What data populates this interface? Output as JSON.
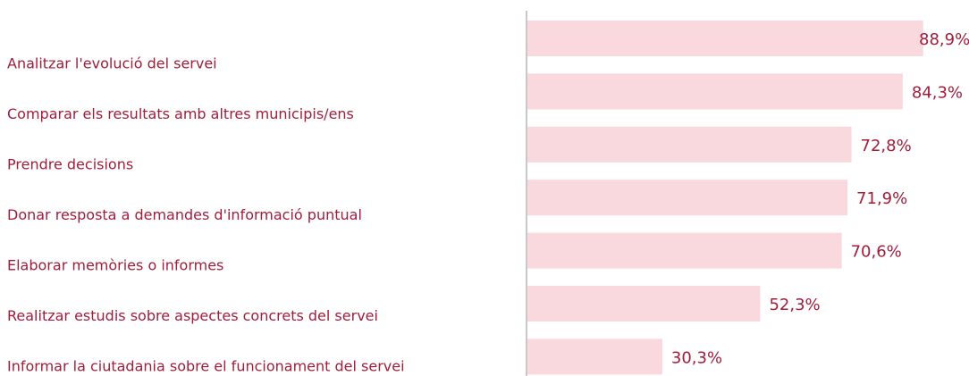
{
  "chart_data": {
    "type": "bar",
    "orientation": "horizontal",
    "categories": [
      "Analitzar l'evolució del servei",
      "Comparar els resultats amb altres municipis/ens",
      "Prendre decisions",
      "Donar resposta a demandes d'informació puntual",
      "Elaborar memòries o informes",
      "Realitzar estudis sobre aspectes concrets del servei",
      "Informar la ciutadania sobre el funcionament del servei"
    ],
    "values": [
      88.9,
      84.3,
      72.8,
      71.9,
      70.6,
      52.3,
      30.3
    ],
    "value_labels": [
      "88,9%",
      "84,3%",
      "72,8%",
      "71,9%",
      "70,6%",
      "52,3%",
      "30,3%"
    ],
    "color": "#f9d9de",
    "text_color": "#a01d3c",
    "xlim": [
      0,
      100
    ]
  }
}
